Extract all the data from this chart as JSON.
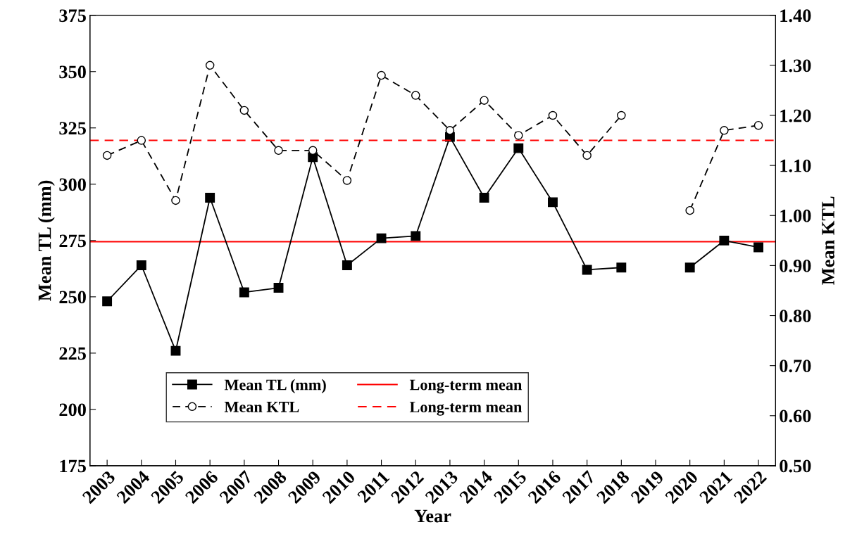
{
  "chart_data": {
    "type": "line",
    "xlabel": "Year",
    "ylabel": "Mean TL (mm)",
    "y2label": "Mean KTL",
    "categories": [
      "2003",
      "2004",
      "2005",
      "2006",
      "2007",
      "2008",
      "2009",
      "2010",
      "2011",
      "2012",
      "2013",
      "2014",
      "2015",
      "2016",
      "2017",
      "2018",
      "2019",
      "2020",
      "2021",
      "2022"
    ],
    "series": [
      {
        "name": "Mean TL (mm)",
        "color": "#000000",
        "marker": "square",
        "line_style": "solid",
        "values": [
          248,
          264,
          226,
          294,
          252,
          254,
          312,
          264,
          276,
          277,
          321,
          294,
          316,
          292,
          262,
          263,
          null,
          263,
          275,
          272
        ]
      },
      {
        "name": "Mean KTL",
        "color": "#000000",
        "marker": "circle",
        "line_style": "dashed",
        "axis": "y2",
        "values": [
          1.12,
          1.15,
          1.03,
          1.3,
          1.21,
          1.13,
          1.13,
          1.07,
          1.28,
          1.24,
          1.17,
          1.23,
          1.16,
          1.2,
          1.12,
          1.2,
          null,
          1.01,
          1.17,
          1.18
        ]
      }
    ],
    "ylim": [
      175,
      375
    ],
    "yticks": [
      175,
      200,
      225,
      250,
      275,
      300,
      325,
      350,
      375
    ],
    "y2lim": [
      0.5,
      1.4
    ],
    "y2ticks": [
      {
        "value": 0.5,
        "label": "0.50"
      },
      {
        "value": 0.6,
        "label": "0.60"
      },
      {
        "value": 0.7,
        "label": "0.70"
      },
      {
        "value": 0.8,
        "label": "0.80"
      },
      {
        "value": 0.9,
        "label": "0.90"
      },
      {
        "value": 1.0,
        "label": "1.00"
      },
      {
        "value": 1.1,
        "label": "1.10"
      },
      {
        "value": 1.2,
        "label": "1.20"
      },
      {
        "value": 1.3,
        "label": "1.30"
      },
      {
        "value": 1.4,
        "label": "1.40"
      }
    ],
    "ref_lines": [
      {
        "axis": "y",
        "value": 274.5,
        "label": "Long-term mean",
        "color": "#ff0000",
        "line_style": "solid"
      },
      {
        "axis": "y2",
        "value": 1.15,
        "label": "Long-term mean",
        "color": "#ff0000",
        "line_style": "dashed"
      }
    ],
    "grid": false,
    "legend": "bottom left"
  }
}
